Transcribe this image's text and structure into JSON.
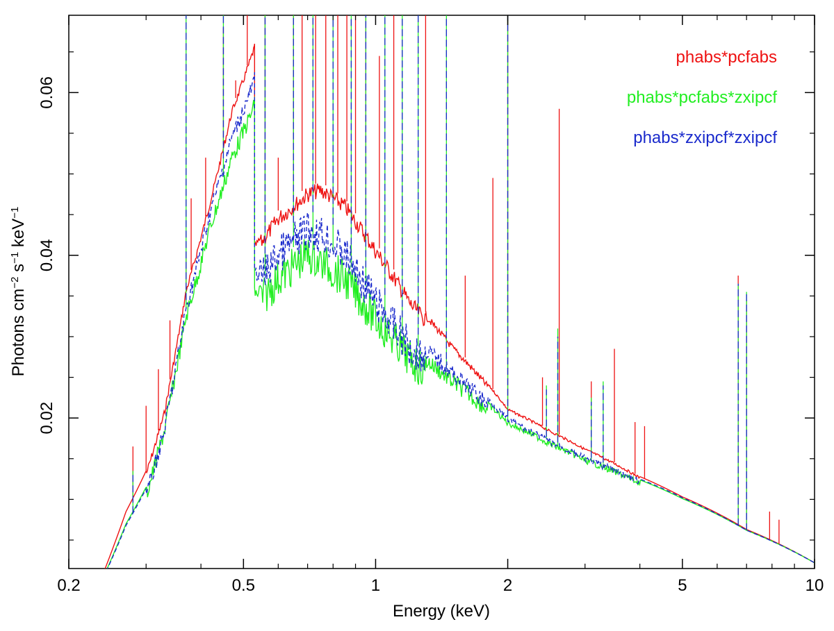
{
  "chart_data": {
    "type": "line",
    "title": "",
    "xlabel": "Energy (keV)",
    "ylabel_main": "Photons cm",
    "ylabel_exp1": "−2",
    "ylabel_mid": " s",
    "ylabel_exp2": "−1",
    "ylabel_mid2": " keV",
    "ylabel_exp3": "−1",
    "xscale": "log",
    "xlim": [
      0.2,
      10
    ],
    "ylim": [
      0.0015,
      0.0695
    ],
    "x_ticks": [
      {
        "value": 0.2,
        "label": "0.2"
      },
      {
        "value": 0.5,
        "label": "0.5"
      },
      {
        "value": 1,
        "label": "1"
      },
      {
        "value": 2,
        "label": "2"
      },
      {
        "value": 5,
        "label": "5"
      },
      {
        "value": 10,
        "label": "10"
      }
    ],
    "y_ticks": [
      {
        "value": 0.02,
        "label": "0.02"
      },
      {
        "value": 0.04,
        "label": "0.04"
      },
      {
        "value": 0.06,
        "label": "0.06"
      }
    ],
    "legend_position": "top-right",
    "series": [
      {
        "name": "phabs*pcfabs",
        "color": "#ee1111",
        "dash": "solid",
        "continuum": [
          [
            0.2,
            0.0
          ],
          [
            0.24,
            0.001
          ],
          [
            0.27,
            0.0085
          ],
          [
            0.3,
            0.0135
          ],
          [
            0.33,
            0.021
          ],
          [
            0.37,
            0.036
          ],
          [
            0.42,
            0.047
          ],
          [
            0.47,
            0.058
          ],
          [
            0.53,
            0.066
          ],
          [
            0.53,
            0.0415
          ],
          [
            0.6,
            0.0455
          ],
          [
            0.7,
            0.0485
          ],
          [
            0.75,
            0.049
          ],
          [
            0.85,
            0.047
          ],
          [
            1.0,
            0.0415
          ],
          [
            1.2,
            0.035
          ],
          [
            1.5,
            0.029
          ],
          [
            2.0,
            0.0212
          ],
          [
            2.5,
            0.0185
          ],
          [
            3.0,
            0.0163
          ],
          [
            4.0,
            0.0128
          ],
          [
            5.0,
            0.0103
          ],
          [
            7.0,
            0.0063
          ],
          [
            10.0,
            0.0022
          ]
        ],
        "lines": [
          [
            0.28,
            0.0165
          ],
          [
            0.3,
            0.0215
          ],
          [
            0.32,
            0.026
          ],
          [
            0.34,
            0.032
          ],
          [
            0.37,
            0.0405
          ],
          [
            0.38,
            0.047
          ],
          [
            0.41,
            0.052
          ],
          [
            0.45,
            0.068
          ],
          [
            0.48,
            0.0615
          ],
          [
            0.51,
            0.0695
          ],
          [
            0.56,
            0.0695
          ],
          [
            0.6,
            0.052
          ],
          [
            0.65,
            0.0695
          ],
          [
            0.68,
            0.0695
          ],
          [
            0.73,
            0.0695
          ],
          [
            0.77,
            0.0695
          ],
          [
            0.82,
            0.0695
          ],
          [
            0.86,
            0.0695
          ],
          [
            0.9,
            0.0695
          ],
          [
            0.95,
            0.0695
          ],
          [
            1.02,
            0.0645
          ],
          [
            1.1,
            0.0695
          ],
          [
            1.3,
            0.0695
          ],
          [
            1.6,
            0.0375
          ],
          [
            1.85,
            0.0495
          ],
          [
            2.0,
            0.0695
          ],
          [
            2.4,
            0.025
          ],
          [
            2.62,
            0.058
          ],
          [
            3.1,
            0.0245
          ],
          [
            3.5,
            0.0285
          ],
          [
            3.9,
            0.0195
          ],
          [
            4.1,
            0.019
          ],
          [
            6.7,
            0.0375
          ],
          [
            7.0,
            0.0345
          ],
          [
            7.9,
            0.0085
          ],
          [
            8.3,
            0.0075
          ]
        ]
      },
      {
        "name": "phabs*pcfabs*zxipcf",
        "color": "#22ee22",
        "dash": "solid",
        "continuum": [
          [
            0.2,
            0.0
          ],
          [
            0.24,
            0.0005
          ],
          [
            0.27,
            0.007
          ],
          [
            0.3,
            0.0115
          ],
          [
            0.33,
            0.0195
          ],
          [
            0.37,
            0.0335
          ],
          [
            0.42,
            0.0445
          ],
          [
            0.47,
            0.053
          ],
          [
            0.53,
            0.0595
          ],
          [
            0.53,
            0.036
          ],
          [
            0.6,
            0.0395
          ],
          [
            0.7,
            0.0425
          ],
          [
            0.75,
            0.0415
          ],
          [
            0.85,
            0.0395
          ],
          [
            1.0,
            0.0345
          ],
          [
            1.2,
            0.0295
          ],
          [
            1.5,
            0.0255
          ],
          [
            2.0,
            0.0198
          ],
          [
            2.5,
            0.0172
          ],
          [
            3.0,
            0.0152
          ],
          [
            4.0,
            0.0124
          ],
          [
            5.0,
            0.0101
          ],
          [
            7.0,
            0.0062
          ],
          [
            10.0,
            0.0022
          ]
        ],
        "lines": [
          [
            0.28,
            0.0135
          ],
          [
            0.37,
            0.0695
          ],
          [
            0.45,
            0.0695
          ],
          [
            0.56,
            0.0695
          ],
          [
            0.65,
            0.0695
          ],
          [
            0.72,
            0.0695
          ],
          [
            0.8,
            0.0695
          ],
          [
            0.88,
            0.0695
          ],
          [
            0.95,
            0.0695
          ],
          [
            1.05,
            0.0695
          ],
          [
            1.15,
            0.0695
          ],
          [
            1.25,
            0.0695
          ],
          [
            1.45,
            0.0695
          ],
          [
            2.0,
            0.0695
          ],
          [
            2.45,
            0.024
          ],
          [
            2.6,
            0.031
          ],
          [
            3.1,
            0.0225
          ],
          [
            3.3,
            0.0245
          ],
          [
            6.7,
            0.0365
          ],
          [
            7.0,
            0.0355
          ]
        ]
      },
      {
        "name": "phabs*zxipcf*zxipcf",
        "color": "#1a2acc",
        "dash": "dashed",
        "continuum": [
          [
            0.2,
            0.0
          ],
          [
            0.24,
            0.0004
          ],
          [
            0.27,
            0.0068
          ],
          [
            0.3,
            0.0113
          ],
          [
            0.33,
            0.0195
          ],
          [
            0.37,
            0.0345
          ],
          [
            0.42,
            0.0465
          ],
          [
            0.47,
            0.0555
          ],
          [
            0.53,
            0.0625
          ],
          [
            0.53,
            0.0385
          ],
          [
            0.6,
            0.0425
          ],
          [
            0.7,
            0.0455
          ],
          [
            0.75,
            0.045
          ],
          [
            0.85,
            0.0425
          ],
          [
            1.0,
            0.0365
          ],
          [
            1.2,
            0.031
          ],
          [
            1.5,
            0.0265
          ],
          [
            2.0,
            0.0202
          ],
          [
            2.5,
            0.0174
          ],
          [
            3.0,
            0.0154
          ],
          [
            4.0,
            0.0125
          ],
          [
            5.0,
            0.0102
          ],
          [
            7.0,
            0.0062
          ],
          [
            10.0,
            0.0022
          ]
        ],
        "lines": [
          [
            0.28,
            0.013
          ],
          [
            0.37,
            0.0695
          ],
          [
            0.45,
            0.0695
          ],
          [
            0.56,
            0.0695
          ],
          [
            0.65,
            0.0695
          ],
          [
            0.72,
            0.0695
          ],
          [
            0.8,
            0.0695
          ],
          [
            0.88,
            0.0695
          ],
          [
            0.95,
            0.0695
          ],
          [
            1.05,
            0.0695
          ],
          [
            1.15,
            0.0695
          ],
          [
            1.25,
            0.0695
          ],
          [
            1.45,
            0.0695
          ],
          [
            2.0,
            0.0695
          ],
          [
            2.45,
            0.0235
          ],
          [
            2.6,
            0.03
          ],
          [
            3.1,
            0.022
          ],
          [
            3.3,
            0.024
          ],
          [
            6.7,
            0.0365
          ],
          [
            7.0,
            0.0355
          ]
        ]
      }
    ]
  }
}
